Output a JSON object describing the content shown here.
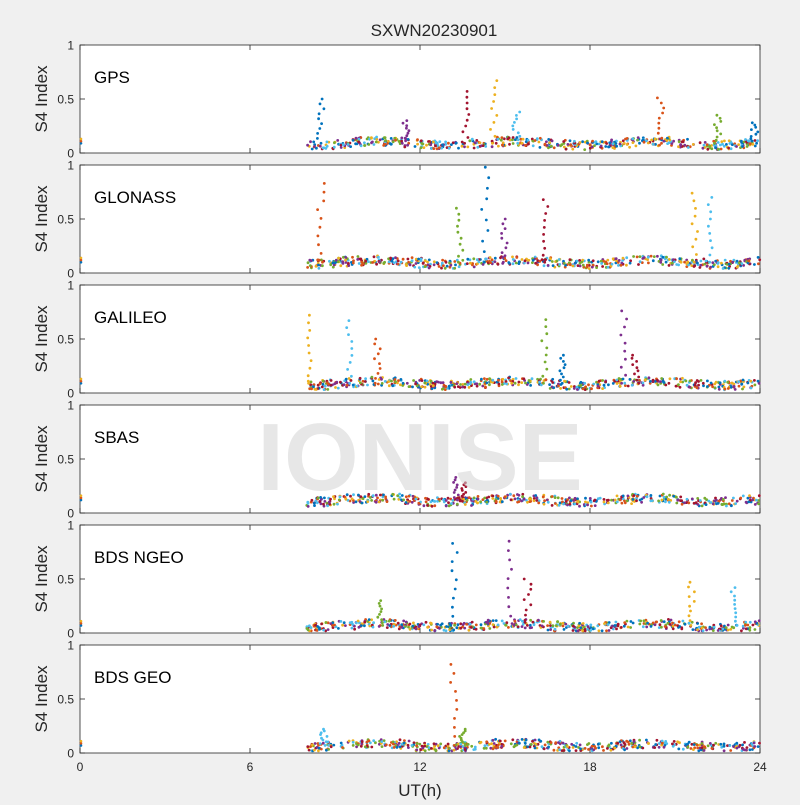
{
  "figure": {
    "title": "SXWN20230901",
    "xlabel": "UT(h)",
    "watermark": "IONISE"
  },
  "chart_data": {
    "type": "scatter",
    "title": "SXWN20230901",
    "xlabel": "UT(h)",
    "ylabel": "S4 Index",
    "xlim": [
      0,
      24
    ],
    "ylim": [
      0,
      1
    ],
    "xticks": [
      0,
      6,
      12,
      18,
      24
    ],
    "xtick_labels": [
      "0",
      "6",
      "12",
      "18",
      "24"
    ],
    "yticks": [
      0,
      0.5,
      1
    ],
    "ytick_labels": [
      "0",
      "0.5",
      "1"
    ],
    "grid": false,
    "series_colors": [
      "#0072BD",
      "#D95319",
      "#EDB120",
      "#7E2F8E",
      "#77AC30",
      "#4DBEEE",
      "#A2142F"
    ],
    "panels": [
      {
        "label": "GPS",
        "start_hour": 8.0,
        "baseline": 0.09,
        "spikes": [
          {
            "x": 8.5,
            "y": 0.5
          },
          {
            "x": 11.5,
            "y": 0.3
          },
          {
            "x": 13.6,
            "y": 0.57
          },
          {
            "x": 14.6,
            "y": 0.67
          },
          {
            "x": 15.4,
            "y": 0.38
          },
          {
            "x": 20.5,
            "y": 0.51
          },
          {
            "x": 22.5,
            "y": 0.35
          },
          {
            "x": 23.8,
            "y": 0.28
          }
        ]
      },
      {
        "label": "GLONASS",
        "start_hour": 8.0,
        "baseline": 0.1,
        "spikes": [
          {
            "x": 8.5,
            "y": 0.83
          },
          {
            "x": 13.4,
            "y": 0.6
          },
          {
            "x": 14.3,
            "y": 0.98
          },
          {
            "x": 15.0,
            "y": 0.5
          },
          {
            "x": 16.4,
            "y": 0.68
          },
          {
            "x": 21.7,
            "y": 0.74
          },
          {
            "x": 22.3,
            "y": 0.7
          }
        ]
      },
      {
        "label": "GALILEO",
        "start_hour": 8.0,
        "baseline": 0.09,
        "spikes": [
          {
            "x": 8.1,
            "y": 0.72
          },
          {
            "x": 9.5,
            "y": 0.67
          },
          {
            "x": 10.5,
            "y": 0.5
          },
          {
            "x": 16.4,
            "y": 0.68
          },
          {
            "x": 17.0,
            "y": 0.35
          },
          {
            "x": 19.2,
            "y": 0.76
          },
          {
            "x": 19.6,
            "y": 0.35
          }
        ]
      },
      {
        "label": "SBAS",
        "start_hour": 8.0,
        "baseline": 0.12,
        "spikes": [
          {
            "x": 13.3,
            "y": 0.33
          },
          {
            "x": 13.5,
            "y": 0.28
          }
        ]
      },
      {
        "label": "BDS NGEO",
        "start_hour": 8.0,
        "baseline": 0.07,
        "spikes": [
          {
            "x": 10.6,
            "y": 0.3
          },
          {
            "x": 13.2,
            "y": 0.83
          },
          {
            "x": 15.2,
            "y": 0.85
          },
          {
            "x": 15.8,
            "y": 0.5
          },
          {
            "x": 21.6,
            "y": 0.47
          },
          {
            "x": 23.1,
            "y": 0.42
          }
        ]
      },
      {
        "label": "BDS GEO",
        "start_hour": 8.0,
        "baseline": 0.07,
        "spikes": [
          {
            "x": 8.6,
            "y": 0.22
          },
          {
            "x": 13.2,
            "y": 0.82
          },
          {
            "x": 13.5,
            "y": 0.22
          }
        ]
      }
    ]
  }
}
